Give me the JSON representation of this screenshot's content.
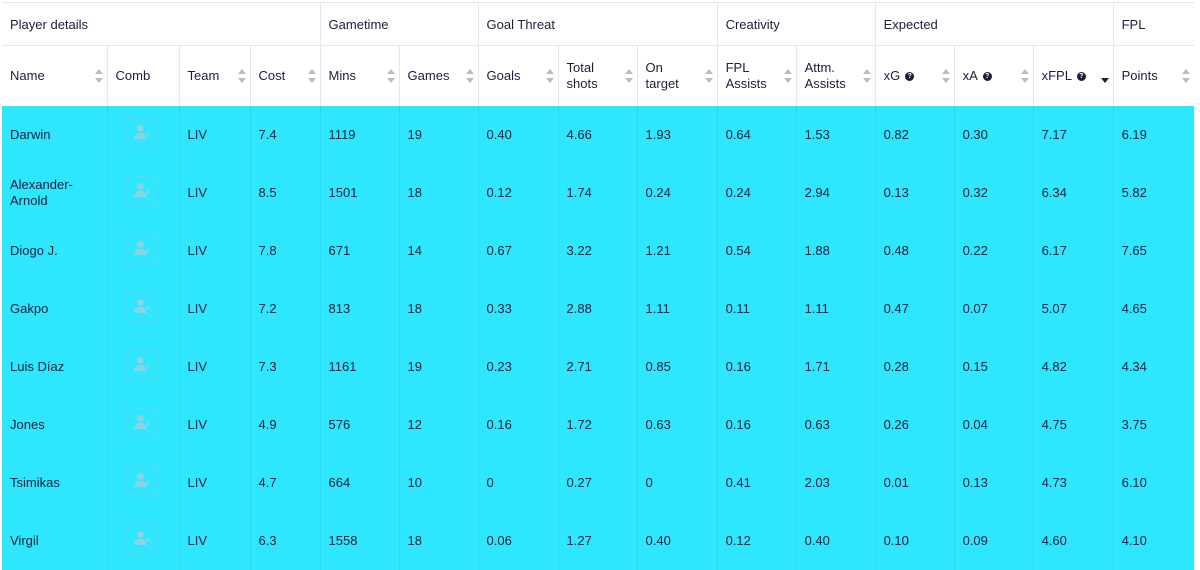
{
  "groups": [
    {
      "label": "Player details",
      "span": 4
    },
    {
      "label": "Gametime",
      "span": 2
    },
    {
      "label": "Goal Threat",
      "span": 3
    },
    {
      "label": "Creativity",
      "span": 2
    },
    {
      "label": "Expected",
      "span": 3
    },
    {
      "label": "FPL",
      "span": 1
    }
  ],
  "columns": [
    {
      "key": "name",
      "label": "Name",
      "sortable": true
    },
    {
      "key": "comb",
      "label": "Comb",
      "sortable": false
    },
    {
      "key": "team",
      "label": "Team",
      "sortable": true
    },
    {
      "key": "cost",
      "label": "Cost",
      "sortable": true
    },
    {
      "key": "mins",
      "label": "Mins",
      "sortable": true
    },
    {
      "key": "games",
      "label": "Games",
      "sortable": true
    },
    {
      "key": "goals",
      "label": "Goals",
      "sortable": true
    },
    {
      "key": "total_shots",
      "label": "Total shots",
      "sortable": true
    },
    {
      "key": "on_target",
      "label": "On target",
      "sortable": true
    },
    {
      "key": "fpl_assists",
      "label": "FPL Assists",
      "sortable": true
    },
    {
      "key": "attm_assists",
      "label": "Attm. Assists",
      "sortable": true
    },
    {
      "key": "xg",
      "label": "xG",
      "sortable": true,
      "help": true
    },
    {
      "key": "xa",
      "label": "xA",
      "sortable": true,
      "help": true
    },
    {
      "key": "xfpl",
      "label": "xFPL",
      "sortable": true,
      "help": true,
      "active": true
    },
    {
      "key": "points",
      "label": "Points",
      "sortable": true
    }
  ],
  "help_icon_glyph": "?",
  "colors": {
    "row_highlight": "#2ee7ff",
    "text": "#1d1d3a"
  },
  "rows": [
    {
      "name": "Darwin",
      "team": "LIV",
      "cost": "7.4",
      "mins": "1119",
      "games": "19",
      "goals": "0.40",
      "total_shots": "4.66",
      "on_target": "1.93",
      "fpl_assists": "0.64",
      "attm_assists": "1.53",
      "xg": "0.82",
      "xa": "0.30",
      "xfpl": "7.17",
      "points": "6.19"
    },
    {
      "name": "Alexander-Arnold",
      "team": "LIV",
      "cost": "8.5",
      "mins": "1501",
      "games": "18",
      "goals": "0.12",
      "total_shots": "1.74",
      "on_target": "0.24",
      "fpl_assists": "0.24",
      "attm_assists": "2.94",
      "xg": "0.13",
      "xa": "0.32",
      "xfpl": "6.34",
      "points": "5.82"
    },
    {
      "name": "Diogo J.",
      "team": "LIV",
      "cost": "7.8",
      "mins": "671",
      "games": "14",
      "goals": "0.67",
      "total_shots": "3.22",
      "on_target": "1.21",
      "fpl_assists": "0.54",
      "attm_assists": "1.88",
      "xg": "0.48",
      "xa": "0.22",
      "xfpl": "6.17",
      "points": "7.65"
    },
    {
      "name": "Gakpo",
      "team": "LIV",
      "cost": "7.2",
      "mins": "813",
      "games": "18",
      "goals": "0.33",
      "total_shots": "2.88",
      "on_target": "1.11",
      "fpl_assists": "0.11",
      "attm_assists": "1.11",
      "xg": "0.47",
      "xa": "0.07",
      "xfpl": "5.07",
      "points": "4.65"
    },
    {
      "name": "Luis Díaz",
      "team": "LIV",
      "cost": "7.3",
      "mins": "1161",
      "games": "19",
      "goals": "0.23",
      "total_shots": "2.71",
      "on_target": "0.85",
      "fpl_assists": "0.16",
      "attm_assists": "1.71",
      "xg": "0.28",
      "xa": "0.15",
      "xfpl": "4.82",
      "points": "4.34"
    },
    {
      "name": "Jones",
      "team": "LIV",
      "cost": "4.9",
      "mins": "576",
      "games": "12",
      "goals": "0.16",
      "total_shots": "1.72",
      "on_target": "0.63",
      "fpl_assists": "0.16",
      "attm_assists": "0.63",
      "xg": "0.26",
      "xa": "0.04",
      "xfpl": "4.75",
      "points": "3.75"
    },
    {
      "name": "Tsimikas",
      "team": "LIV",
      "cost": "4.7",
      "mins": "664",
      "games": "10",
      "goals": "0",
      "total_shots": "0.27",
      "on_target": "0",
      "fpl_assists": "0.41",
      "attm_assists": "2.03",
      "xg": "0.01",
      "xa": "0.13",
      "xfpl": "4.73",
      "points": "6.10"
    },
    {
      "name": "Virgil",
      "team": "LIV",
      "cost": "6.3",
      "mins": "1558",
      "games": "18",
      "goals": "0.06",
      "total_shots": "1.27",
      "on_target": "0.40",
      "fpl_assists": "0.12",
      "attm_assists": "0.40",
      "xg": "0.10",
      "xa": "0.09",
      "xfpl": "4.60",
      "points": "4.10"
    }
  ]
}
